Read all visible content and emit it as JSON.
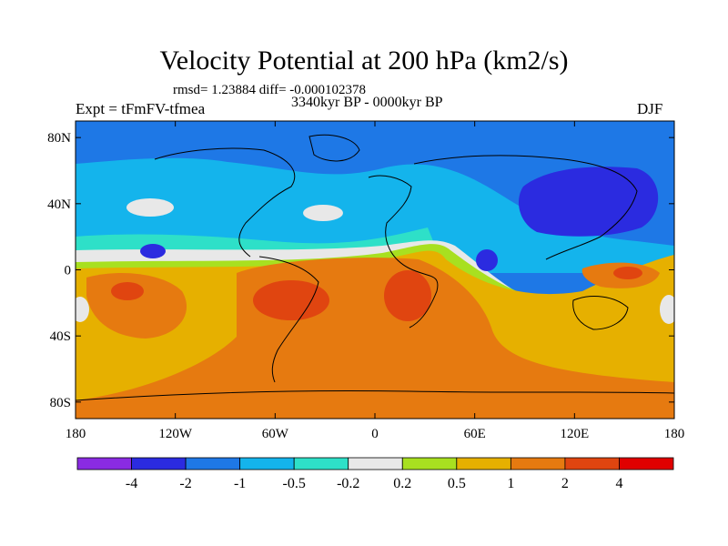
{
  "chart_data": {
    "type": "heatmap",
    "title": "Velocity Potential at 200 hPa (km2/s)",
    "stats_line": "rmsd= 1.23884 diff= -0.000102378",
    "left_label": "Expt = tFmFV-tfmea",
    "center_label": "3340kyr BP - 0000kyr BP",
    "right_label": "DJF",
    "x_ticks": [
      "180",
      "120W",
      "60W",
      "0",
      "60E",
      "120E",
      "180"
    ],
    "y_ticks": [
      "80N",
      "40N",
      "0",
      "40S",
      "80S"
    ],
    "colorbar": {
      "labels": [
        "-4",
        "-2",
        "-1",
        "-0.5",
        "-0.2",
        "0.2",
        "0.5",
        "1",
        "2",
        "4"
      ],
      "colors": [
        "#8a2be2",
        "#2b2be0",
        "#1e78e6",
        "#14b4ec",
        "#2ee0c8",
        "#e8e8e8",
        "#a8e020",
        "#e6b000",
        "#e67a10",
        "#e04510",
        "#e00000"
      ]
    }
  }
}
